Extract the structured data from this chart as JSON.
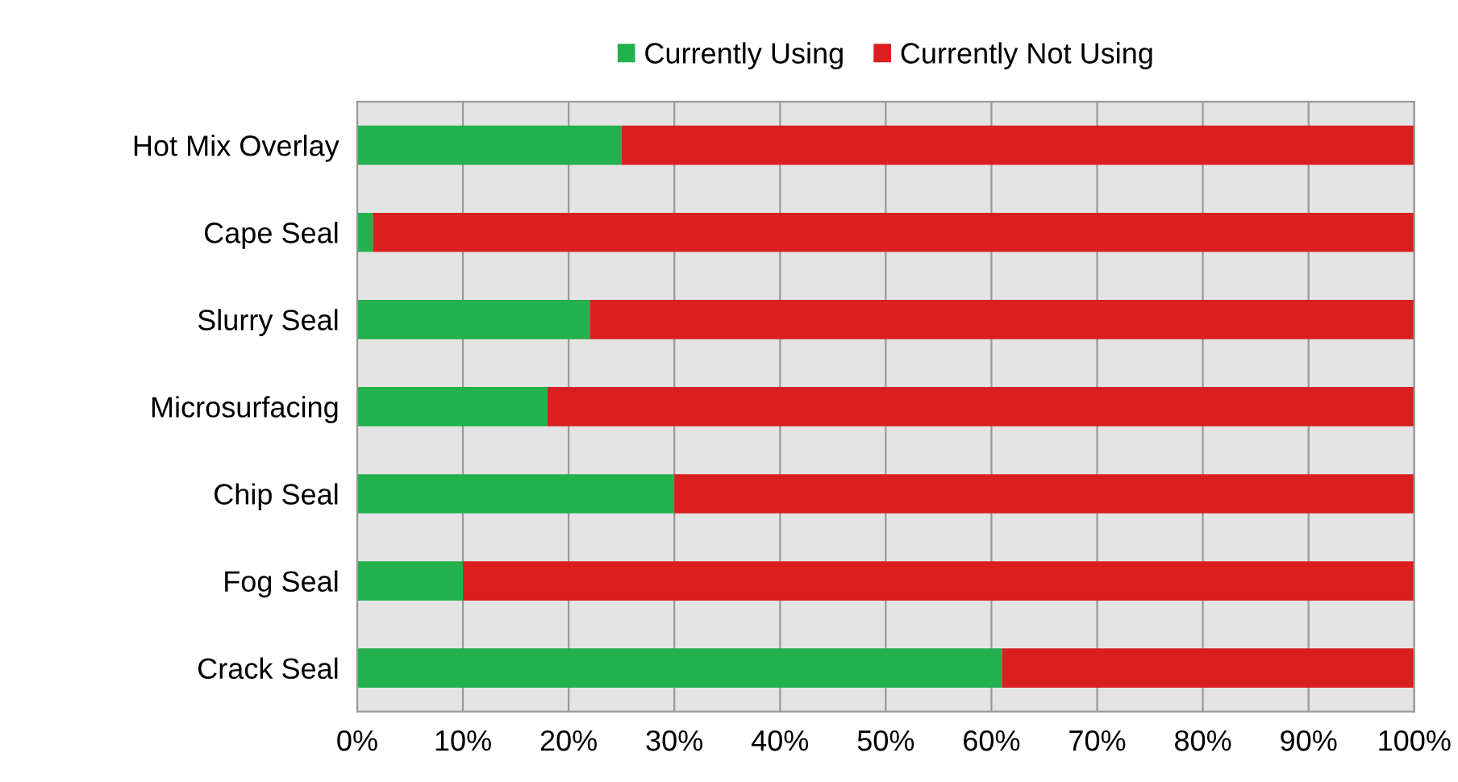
{
  "chart_data": {
    "type": "bar",
    "orientation": "horizontal",
    "stacked": true,
    "categories": [
      "Hot Mix Overlay",
      "Cape Seal",
      "Slurry Seal",
      "Microsurfacing",
      "Chip Seal",
      "Fog Seal",
      "Crack Seal"
    ],
    "series": [
      {
        "name": "Currently Using",
        "color": "#22b14c",
        "values": [
          25,
          1.5,
          22,
          18,
          30,
          10,
          61
        ]
      },
      {
        "name": "Currently Not Using",
        "color": "#d91f1f",
        "values": [
          75,
          98.5,
          78,
          82,
          70,
          90,
          39
        ]
      }
    ],
    "xlim": [
      0,
      100
    ],
    "xticks": [
      {
        "value": 0,
        "label": "0%"
      },
      {
        "value": 10,
        "label": "10%"
      },
      {
        "value": 20,
        "label": "20%"
      },
      {
        "value": 30,
        "label": "30%"
      },
      {
        "value": 40,
        "label": "40%"
      },
      {
        "value": 50,
        "label": "50%"
      },
      {
        "value": 60,
        "label": "60%"
      },
      {
        "value": 70,
        "label": "70%"
      },
      {
        "value": 80,
        "label": "80%"
      },
      {
        "value": 90,
        "label": "90%"
      },
      {
        "value": 100,
        "label": "100%"
      }
    ],
    "grid": "x",
    "legend": "top"
  }
}
